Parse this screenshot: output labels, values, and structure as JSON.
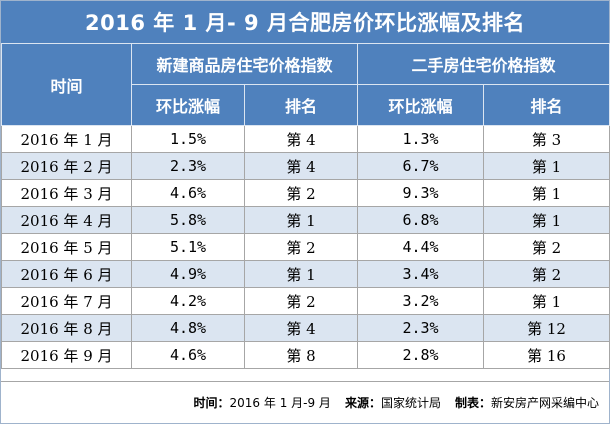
{
  "title": "2016 年 1 月- 9 月合肥房价环比涨幅及排名",
  "header": {
    "time": "时间",
    "group_new": "新建商品房住宅价格指数",
    "group_used": "二手房住宅价格指数",
    "new_change": "环比涨幅",
    "new_rank": "排名",
    "used_change": "环比涨幅",
    "used_rank": "排名"
  },
  "rows": [
    {
      "month": "2016 年 1 月",
      "new_change": "1.5%",
      "new_rank": "第 4",
      "used_change": "1.3%",
      "used_rank": "第 3"
    },
    {
      "month": "2016 年 2 月",
      "new_change": "2.3%",
      "new_rank": "第 4",
      "used_change": "6.7%",
      "used_rank": "第 1"
    },
    {
      "month": "2016 年 3 月",
      "new_change": "4.6%",
      "new_rank": "第 2",
      "used_change": "9.3%",
      "used_rank": "第 1"
    },
    {
      "month": "2016 年 4 月",
      "new_change": "5.8%",
      "new_rank": "第 1",
      "used_change": "6.8%",
      "used_rank": "第 1"
    },
    {
      "month": "2016 年 5 月",
      "new_change": "5.1%",
      "new_rank": "第 2",
      "used_change": "4.4%",
      "used_rank": "第 2"
    },
    {
      "month": "2016 年 6 月",
      "new_change": "4.9%",
      "new_rank": "第 1",
      "used_change": "3.4%",
      "used_rank": "第 2"
    },
    {
      "month": "2016 年 7 月",
      "new_change": "4.2%",
      "new_rank": "第 2",
      "used_change": "3.2%",
      "used_rank": "第 1"
    },
    {
      "month": "2016 年 8 月",
      "new_change": "4.8%",
      "new_rank": "第 4",
      "used_change": "2.3%",
      "used_rank": "第 12"
    },
    {
      "month": "2016 年 9 月",
      "new_change": "4.6%",
      "new_rank": "第 8",
      "used_change": "2.8%",
      "used_rank": "第 16"
    }
  ],
  "footer": {
    "time_label": "时间：",
    "time_value": "2016 年 1 月-9 月",
    "source_label": "来源：",
    "source_value": "国家统计局",
    "maker_label": "制表：",
    "maker_value": "新安房产网采编中心"
  },
  "colors": {
    "header_blue": "#4f81bd",
    "stripe_light_blue": "#dbe5f1"
  }
}
